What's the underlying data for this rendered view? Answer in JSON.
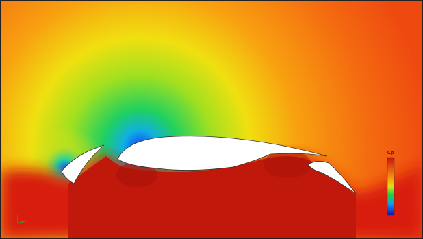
{
  "legend": {
    "title": "Cp"
  }
}
